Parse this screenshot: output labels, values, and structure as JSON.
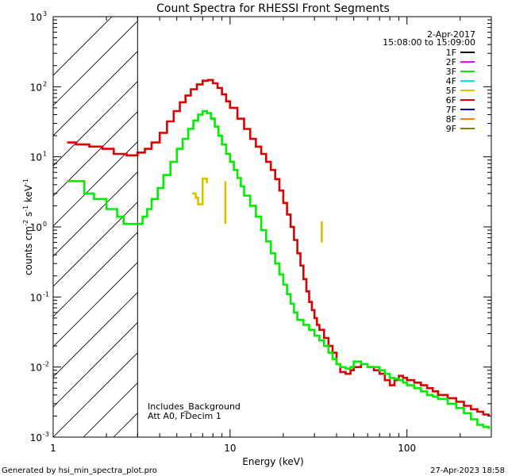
{
  "chart_data": {
    "type": "line",
    "title": "Count Spectra for RHESSI Front Segments",
    "xlabel": "Energy (keV)",
    "ylabel": "counts cm",
    "ylabel_parts": [
      "counts cm",
      "-2",
      " s",
      "-1",
      " keV",
      "-1"
    ],
    "xscale": "log",
    "yscale": "log",
    "xlim": [
      1,
      300
    ],
    "ylim": [
      0.001,
      1000
    ],
    "x_ticks": [
      {
        "value": 1,
        "label": "1"
      },
      {
        "value": 10,
        "label": "10"
      },
      {
        "value": 100,
        "label": "100"
      }
    ],
    "y_ticks": [
      {
        "value": 0.001,
        "base": "10",
        "exp": "-3"
      },
      {
        "value": 0.01,
        "base": "10",
        "exp": "-2"
      },
      {
        "value": 0.1,
        "base": "10",
        "exp": "-1"
      },
      {
        "value": 1,
        "base": "10",
        "exp": "0"
      },
      {
        "value": 10,
        "base": "10",
        "exp": "1"
      },
      {
        "value": 100,
        "base": "10",
        "exp": "2"
      },
      {
        "value": 1000,
        "base": "10",
        "exp": "3"
      }
    ],
    "hatched_region": [
      1,
      3
    ],
    "date": "2-Apr-2017",
    "time_range": "15:08:00 to 15:09:00",
    "annotations": [
      "Includes_Background",
      "Att A0, FDecim 1"
    ],
    "legend": [
      {
        "name": "1F",
        "color": "#000000"
      },
      {
        "name": "2F",
        "color": "#ff00ff"
      },
      {
        "name": "3F",
        "color": "#00ee00"
      },
      {
        "name": "4F",
        "color": "#00e5ff"
      },
      {
        "name": "5F",
        "color": "#d4c400"
      },
      {
        "name": "6F",
        "color": "#dd0000"
      },
      {
        "name": "7F",
        "color": "#0000cc"
      },
      {
        "name": "8F",
        "color": "#ff7f00"
      },
      {
        "name": "9F",
        "color": "#808000"
      }
    ],
    "series": [
      {
        "name": "6F",
        "color": "#dd0000",
        "segments": [
          [
            [
              1.2,
              16
            ],
            [
              1.35,
              15
            ],
            [
              1.6,
              14
            ],
            [
              1.9,
              13
            ],
            [
              2.2,
              11
            ],
            [
              2.6,
              10.5
            ],
            [
              3.0,
              11.5
            ],
            [
              3.3,
              13
            ],
            [
              3.6,
              16
            ],
            [
              4.0,
              22
            ],
            [
              4.4,
              32
            ],
            [
              4.8,
              45
            ],
            [
              5.2,
              60
            ],
            [
              5.6,
              75
            ],
            [
              6.0,
              92
            ],
            [
              6.5,
              108
            ],
            [
              7.0,
              122
            ],
            [
              7.5,
              125
            ],
            [
              8.0,
              112
            ],
            [
              8.5,
              96
            ],
            [
              9.0,
              78
            ],
            [
              9.5,
              62
            ],
            [
              10.0,
              50
            ],
            [
              11.0,
              35
            ],
            [
              12.0,
              25
            ],
            [
              13.0,
              18
            ],
            [
              14.0,
              14
            ],
            [
              15.0,
              11
            ],
            [
              16.0,
              8.5
            ],
            [
              17.0,
              6.5
            ],
            [
              18.0,
              4.8
            ],
            [
              19.0,
              3.3
            ],
            [
              20.0,
              2.2
            ],
            [
              21.0,
              1.5
            ],
            [
              22.0,
              1.0
            ],
            [
              23.0,
              0.65
            ],
            [
              24.0,
              0.42
            ],
            [
              25.0,
              0.28
            ],
            [
              26.0,
              0.18
            ],
            [
              27.0,
              0.12
            ],
            [
              28.0,
              0.085
            ],
            [
              29.0,
              0.065
            ],
            [
              30.0,
              0.05
            ],
            [
              31.0,
              0.04
            ],
            [
              32.0,
              0.034
            ],
            [
              34.0,
              0.026
            ],
            [
              36.0,
              0.02
            ],
            [
              38.0,
              0.016
            ],
            [
              40.0,
              0.011
            ],
            [
              42.0,
              0.0085
            ],
            [
              45.0,
              0.008
            ],
            [
              48.0,
              0.009
            ],
            [
              50.0,
              0.01
            ],
            [
              55.0,
              0.011
            ],
            [
              60.0,
              0.01
            ],
            [
              65.0,
              0.009
            ],
            [
              70.0,
              0.008
            ],
            [
              75.0,
              0.0065
            ],
            [
              80.0,
              0.0055
            ],
            [
              85.0,
              0.0065
            ],
            [
              90.0,
              0.0075
            ],
            [
              95.0,
              0.007
            ],
            [
              100.0,
              0.0065
            ],
            [
              110.0,
              0.006
            ],
            [
              120.0,
              0.0055
            ],
            [
              130.0,
              0.005
            ],
            [
              140.0,
              0.0045
            ],
            [
              150.0,
              0.004
            ],
            [
              170.0,
              0.0036
            ],
            [
              190.0,
              0.0032
            ],
            [
              210.0,
              0.0028
            ],
            [
              230.0,
              0.0025
            ],
            [
              250.0,
              0.0023
            ],
            [
              270.0,
              0.0021
            ],
            [
              290.0,
              0.002
            ]
          ]
        ]
      },
      {
        "name": "3F",
        "color": "#00ee00",
        "segments": [
          [
            [
              1.2,
              4.5
            ],
            [
              1.35,
              4.5
            ],
            [
              1.5,
              3
            ],
            [
              1.7,
              2.5
            ],
            [
              2.0,
              1.8
            ],
            [
              2.3,
              1.4
            ],
            [
              2.5,
              1.1
            ],
            [
              3.0,
              1.1
            ],
            [
              3.2,
              1.4
            ],
            [
              3.4,
              1.8
            ],
            [
              3.6,
              2.5
            ],
            [
              3.9,
              3.6
            ],
            [
              4.2,
              5.5
            ],
            [
              4.6,
              8.5
            ],
            [
              5.0,
              13
            ],
            [
              5.4,
              18
            ],
            [
              5.8,
              25
            ],
            [
              6.2,
              33
            ],
            [
              6.6,
              40
            ],
            [
              7.0,
              45
            ],
            [
              7.4,
              42
            ],
            [
              7.8,
              35
            ],
            [
              8.2,
              27
            ],
            [
              8.6,
              20
            ],
            [
              9.0,
              15
            ],
            [
              9.5,
              11
            ],
            [
              10.0,
              8.5
            ],
            [
              10.5,
              6.5
            ],
            [
              11.0,
              5
            ],
            [
              11.5,
              3.8
            ],
            [
              12.0,
              2.8
            ],
            [
              13.0,
              2
            ],
            [
              14.0,
              1.4
            ],
            [
              15.0,
              0.9
            ],
            [
              16.0,
              0.62
            ],
            [
              17.0,
              0.42
            ],
            [
              18.0,
              0.3
            ],
            [
              19.0,
              0.21
            ],
            [
              20.0,
              0.15
            ],
            [
              21.0,
              0.11
            ],
            [
              22.0,
              0.08
            ],
            [
              23.0,
              0.06
            ],
            [
              24.0,
              0.047
            ],
            [
              26.0,
              0.04
            ],
            [
              28.0,
              0.034
            ],
            [
              30.0,
              0.028
            ],
            [
              32.0,
              0.024
            ],
            [
              34.0,
              0.02
            ],
            [
              36.0,
              0.016
            ],
            [
              38.0,
              0.013
            ],
            [
              40.0,
              0.011
            ],
            [
              42.0,
              0.01
            ],
            [
              45.0,
              0.0095
            ],
            [
              48.0,
              0.01
            ],
            [
              50.0,
              0.012
            ],
            [
              55.0,
              0.011
            ],
            [
              60.0,
              0.01
            ],
            [
              65.0,
              0.01
            ],
            [
              70.0,
              0.009
            ],
            [
              75.0,
              0.008
            ],
            [
              80.0,
              0.007
            ],
            [
              85.0,
              0.0068
            ],
            [
              90.0,
              0.0065
            ],
            [
              95.0,
              0.006
            ],
            [
              100.0,
              0.0055
            ],
            [
              110.0,
              0.005
            ],
            [
              120.0,
              0.0045
            ],
            [
              130.0,
              0.004
            ],
            [
              140.0,
              0.0038
            ],
            [
              150.0,
              0.0035
            ],
            [
              170.0,
              0.003
            ],
            [
              190.0,
              0.0026
            ],
            [
              210.0,
              0.0022
            ],
            [
              230.0,
              0.0018
            ],
            [
              250.0,
              0.0015
            ],
            [
              270.0,
              0.0014
            ],
            [
              290.0,
              0.0013
            ]
          ]
        ]
      },
      {
        "name": "5F",
        "color": "#d4c400",
        "segments": [
          [
            [
              6.1,
              3.0
            ],
            [
              6.4,
              2.6
            ],
            [
              6.6,
              2.1
            ],
            [
              6.9,
              2.1
            ],
            [
              7.0,
              4.9
            ],
            [
              7.2,
              4.9
            ],
            [
              7.4,
              4.2
            ]
          ],
          [
            [
              9.4,
              4.5
            ],
            [
              9.4,
              1.1
            ]
          ],
          [
            [
              33.0,
              1.2
            ],
            [
              33.0,
              0.6
            ]
          ]
        ]
      }
    ]
  },
  "footer": {
    "left": "Generated by hsi_min_spectra_plot.pro",
    "right": "27-Apr-2023 18:58"
  }
}
